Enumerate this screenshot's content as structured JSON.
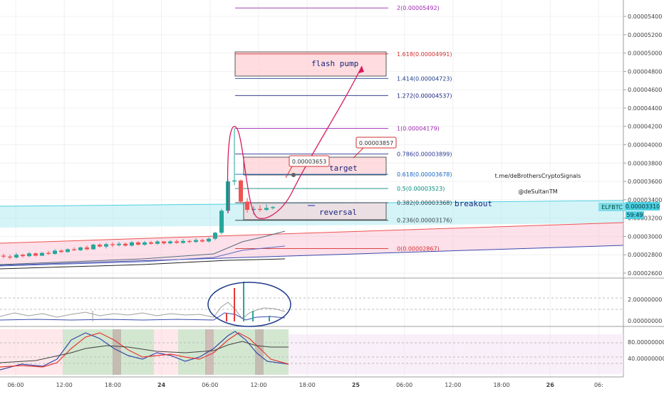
{
  "chart_data": {
    "type": "candlestick",
    "symbol": "ELFBTC",
    "last_price": "0.00003310",
    "countdown": "59:49",
    "price_axis": {
      "min": 2.6e-05,
      "max": 5.54e-05,
      "ticks": [
        "0.00005400",
        "0.00005200",
        "0.00005000",
        "0.00004800",
        "0.00004600",
        "0.00004400",
        "0.00004200",
        "0.00004000",
        "0.00003800",
        "0.00003600",
        "0.00003400",
        "0.00003200",
        "0.00003000",
        "0.00002800",
        "0.00002600"
      ]
    },
    "time_axis": {
      "ticks": [
        "06:00",
        "12:00",
        "18:00",
        "24",
        "06:00",
        "12:00",
        "18:00",
        "25",
        "06:00",
        "12:00",
        "18:00",
        "26",
        "06:"
      ]
    },
    "fib_levels": [
      {
        "label": "2(0.00005492)",
        "price": 5.492e-05,
        "color": "#9c27b0"
      },
      {
        "label": "1.618(0.00004991)",
        "price": 4.991e-05,
        "color": "#d32f2f"
      },
      {
        "label": "1.414(0.00004723)",
        "price": 4.723e-05,
        "color": "#1e3a8a"
      },
      {
        "label": "1.272(0.00004537)",
        "price": 4.537e-05,
        "color": "#1a237e"
      },
      {
        "label": "1(0.00004179)",
        "price": 4.179e-05,
        "color": "#9c27b0"
      },
      {
        "label": "0.786(0.00003899)",
        "price": 3.899e-05,
        "color": "#283593"
      },
      {
        "label": "0.618(0.00003678)",
        "price": 3.678e-05,
        "color": "#1565c0"
      },
      {
        "label": "0.5(0.00003523)",
        "price": 3.523e-05,
        "color": "#00897b"
      },
      {
        "label": "0.382(0.00003368)",
        "price": 3.368e-05,
        "color": "#37474f"
      },
      {
        "label": "0.236(0.00003176)",
        "price": 3.176e-05,
        "color": "#37474f"
      },
      {
        "label": "0(0.00002867)",
        "price": 2.867e-05,
        "color": "#d32f2f"
      }
    ],
    "annotations": {
      "flash_pump": "flash pump",
      "target": "target",
      "reversal": "reversal",
      "breakout": "breakout",
      "callout_1": "0.00003857",
      "callout_2": "0.00003653",
      "credit_1": "t.me/deBrothersCryptoSignals",
      "credit_2": "@deSultanTM"
    },
    "volume_panel": {
      "ticks": [
        "2.00000000",
        "0.00000000"
      ]
    },
    "oscillator_panel": {
      "ticks": [
        "80.00000000",
        "40.00000000"
      ]
    },
    "candles": [
      [
        2.79e-05,
        2.81e-05,
        2.76e-05,
        2.78e-05
      ],
      [
        2.78e-05,
        2.8e-05,
        2.75e-05,
        2.77e-05
      ],
      [
        2.77e-05,
        2.82e-05,
        2.76e-05,
        2.8e-05
      ],
      [
        2.8e-05,
        2.81e-05,
        2.77e-05,
        2.785e-05
      ],
      [
        2.785e-05,
        2.83e-05,
        2.775e-05,
        2.815e-05
      ],
      [
        2.815e-05,
        2.825e-05,
        2.78e-05,
        2.79e-05
      ],
      [
        2.79e-05,
        2.83e-05,
        2.785e-05,
        2.82e-05
      ],
      [
        2.82e-05,
        2.84e-05,
        2.8e-05,
        2.81e-05
      ],
      [
        2.81e-05,
        2.86e-05,
        2.8e-05,
        2.845e-05
      ],
      [
        2.845e-05,
        2.86e-05,
        2.82e-05,
        2.83e-05
      ],
      [
        2.83e-05,
        2.87e-05,
        2.825e-05,
        2.86e-05
      ],
      [
        2.86e-05,
        2.88e-05,
        2.84e-05,
        2.85e-05
      ],
      [
        2.85e-05,
        2.89e-05,
        2.84e-05,
        2.88e-05
      ],
      [
        2.88e-05,
        2.9e-05,
        2.85e-05,
        2.86e-05
      ],
      [
        2.86e-05,
        2.92e-05,
        2.855e-05,
        2.91e-05
      ],
      [
        2.91e-05,
        2.925e-05,
        2.88e-05,
        2.89e-05
      ],
      [
        2.89e-05,
        2.93e-05,
        2.87e-05,
        2.915e-05
      ],
      [
        2.915e-05,
        2.935e-05,
        2.885e-05,
        2.905e-05
      ],
      [
        2.905e-05,
        2.94e-05,
        2.89e-05,
        2.92e-05
      ],
      [
        2.92e-05,
        2.935e-05,
        2.89e-05,
        2.9e-05
      ],
      [
        2.9e-05,
        2.95e-05,
        2.89e-05,
        2.935e-05
      ],
      [
        2.935e-05,
        2.945e-05,
        2.9e-05,
        2.91e-05
      ],
      [
        2.91e-05,
        2.95e-05,
        2.9e-05,
        2.935e-05
      ],
      [
        2.935e-05,
        2.95e-05,
        2.91e-05,
        2.92e-05
      ],
      [
        2.92e-05,
        2.96e-05,
        2.91e-05,
        2.945e-05
      ],
      [
        2.945e-05,
        2.95e-05,
        2.91e-05,
        2.925e-05
      ],
      [
        2.925e-05,
        2.96e-05,
        2.915e-05,
        2.945e-05
      ],
      [
        2.945e-05,
        2.965e-05,
        2.92e-05,
        2.93e-05
      ],
      [
        2.93e-05,
        2.97e-05,
        2.92e-05,
        2.95e-05
      ],
      [
        2.95e-05,
        2.965e-05,
        2.925e-05,
        2.94e-05
      ],
      [
        2.94e-05,
        2.98e-05,
        2.93e-05,
        2.96e-05
      ],
      [
        2.96e-05,
        2.975e-05,
        2.935e-05,
        2.945e-05
      ],
      [
        2.945e-05,
        2.99e-05,
        2.935e-05,
        2.975e-05
      ],
      [
        2.975e-05,
        3.05e-05,
        2.96e-05,
        3.04e-05
      ],
      [
        3.04e-05,
        3.3e-05,
        3.02e-05,
        3.28e-05
      ],
      [
        3.28e-05,
        3.62e-05,
        3.26e-05,
        3.6e-05
      ],
      [
        3.6e-05,
        4.179e-05,
        3.56e-05,
        3.61e-05
      ],
      [
        3.61e-05,
        3.62e-05,
        3.36e-05,
        3.38e-05
      ],
      [
        3.38e-05,
        3.42e-05,
        3.26e-05,
        3.29e-05
      ],
      [
        3.29e-05,
        3.33e-05,
        3.24e-05,
        3.3e-05
      ],
      [
        3.3e-05,
        3.34e-05,
        3.27e-05,
        3.29e-05
      ],
      [
        3.29e-05,
        3.35e-05,
        3.28e-05,
        3.31e-05
      ],
      [
        3.31e-05,
        3.33e-05,
        3.295e-05,
        3.32e-05
      ]
    ]
  }
}
